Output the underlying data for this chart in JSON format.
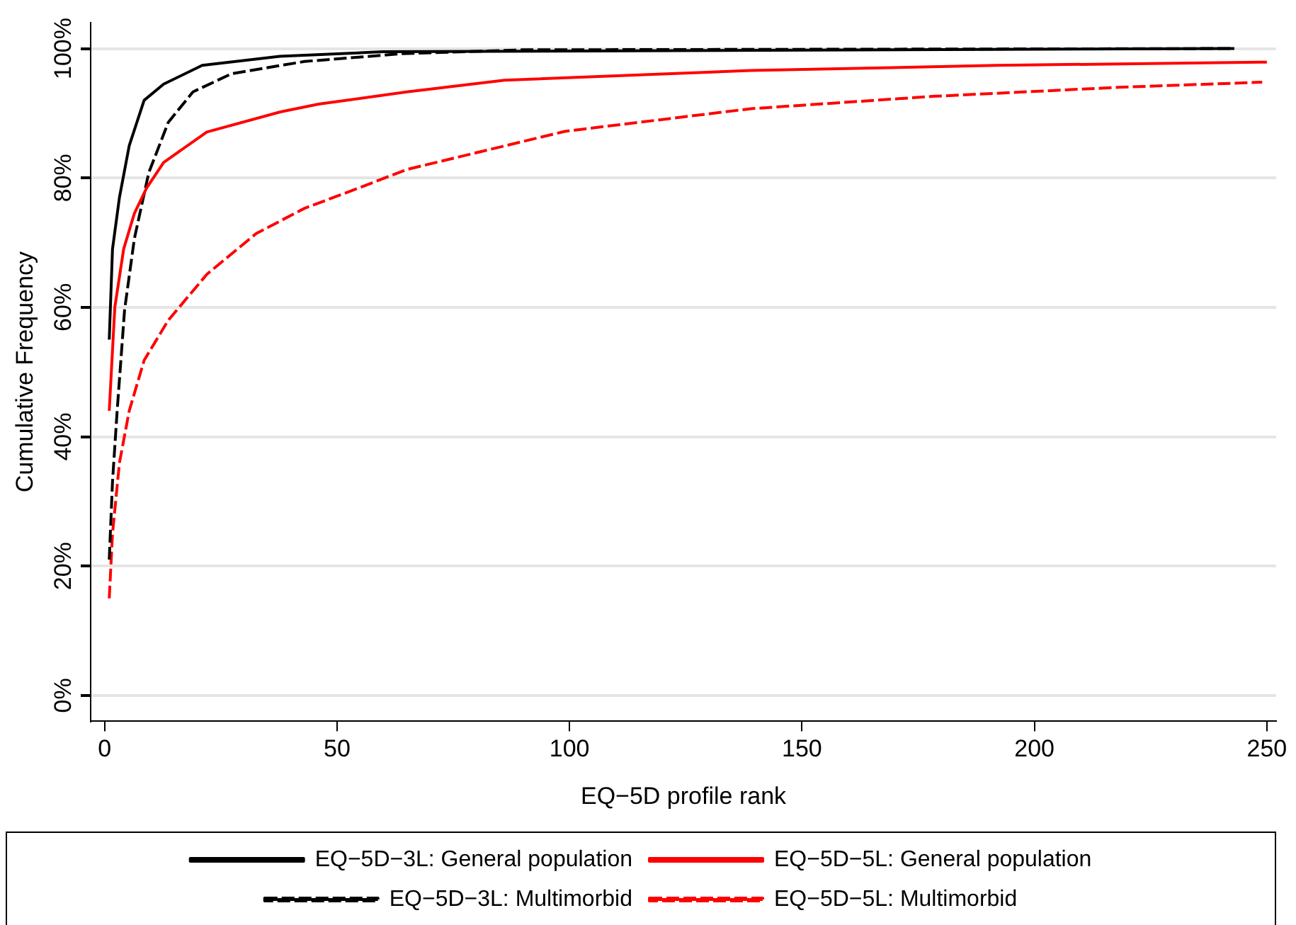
{
  "chart_data": {
    "type": "line",
    "xlabel": "EQ−5D profile rank",
    "ylabel": "Cumulative Frequency",
    "xlim": [
      -3,
      252
    ],
    "xticks": [
      0,
      50,
      100,
      150,
      200,
      250
    ],
    "ylim": [
      -4,
      104
    ],
    "yticks": [
      {
        "value": 0,
        "label": "0%"
      },
      {
        "value": 20,
        "label": "20%"
      },
      {
        "value": 40,
        "label": "40%"
      },
      {
        "value": 60,
        "label": "60%"
      },
      {
        "value": 80,
        "label": "80%"
      },
      {
        "value": 100,
        "label": "100%"
      }
    ],
    "grid": "y",
    "legend": "bottom",
    "marker": "none",
    "series": [
      {
        "name": "EQ−5D−3L: General population",
        "color": "#000000",
        "line_style": "solid",
        "x": [
          1,
          1.7,
          3.2,
          5.3,
          8.5,
          12.7,
          21,
          37.7,
          60,
          243
        ],
        "values": [
          55,
          69,
          77,
          85,
          92,
          94.5,
          97.4,
          98.8,
          99.5,
          100
        ]
      },
      {
        "name": "EQ−5D−5L: General population",
        "color": "#ff0000",
        "line_style": "solid",
        "x": [
          1,
          2.2,
          4.1,
          6.4,
          9,
          12.7,
          22,
          37.8,
          46,
          65,
          86,
          139,
          192,
          250
        ],
        "values": [
          44,
          60,
          69,
          74.5,
          78.4,
          82.4,
          87.1,
          90.2,
          91.4,
          93.3,
          95.1,
          96.6,
          97.4,
          97.9
        ]
      },
      {
        "name": "EQ−5D−3L: Multimorbid",
        "color": "#000000",
        "line_style": "dashed",
        "x": [
          1,
          1.7,
          2.7,
          4.3,
          6.4,
          9.5,
          13.7,
          19,
          27.3,
          43,
          64,
          90,
          243
        ],
        "values": [
          21,
          33,
          44,
          59.6,
          70.6,
          80.8,
          88.6,
          93.3,
          96.1,
          98,
          99.2,
          99.8,
          100
        ]
      },
      {
        "name": "EQ−5D−5L: Multimorbid",
        "color": "#ff0000",
        "line_style": "dashed",
        "x": [
          1,
          1.7,
          3.2,
          5.3,
          8.5,
          13.7,
          22,
          32.6,
          43,
          54.5,
          65,
          99,
          139,
          178,
          218,
          249
        ],
        "values": [
          15,
          25,
          36,
          44,
          51.8,
          58,
          65.1,
          71.4,
          75.3,
          78.4,
          81.3,
          87.2,
          90.7,
          92.6,
          94,
          94.8
        ]
      }
    ]
  }
}
